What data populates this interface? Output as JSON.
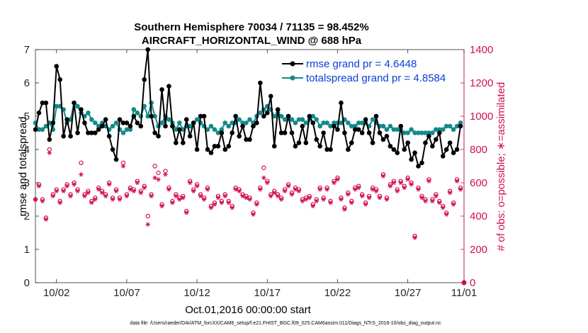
{
  "chart_data": {
    "type": "line",
    "title_line1": "Southern Hemisphere 70034 / 71135 = 98.452%",
    "title_line2": "AIRCRAFT_HORIZONTAL_WIND @ 688 hPa",
    "xlabel": "Oct.01,2016 00:00:00 start",
    "ylabel_left": "rmse and totalspread",
    "ylabel_right": "# of obs: o=possible; ∗=assimilated",
    "xlim": [
      0.5,
      31.0
    ],
    "ylim_left": [
      0,
      7
    ],
    "ylim_right": [
      0,
      1400
    ],
    "x_ticks": [
      {
        "x": 2,
        "label": "10/02"
      },
      {
        "x": 7,
        "label": "10/07"
      },
      {
        "x": 12,
        "label": "10/12"
      },
      {
        "x": 17,
        "label": "10/17"
      },
      {
        "x": 22,
        "label": "10/22"
      },
      {
        "x": 27,
        "label": "10/27"
      },
      {
        "x": 31,
        "label": "11/01"
      }
    ],
    "y_ticks_left": [
      "0",
      "1",
      "2",
      "3",
      "4",
      "5",
      "6",
      "7"
    ],
    "y_ticks_right": [
      "0",
      "200",
      "400",
      "600",
      "800",
      "1000",
      "1200",
      "1400"
    ],
    "legend": {
      "position": "top-right",
      "rmse": "rmse grand pr = 4.6448",
      "spread": "totalspread grand pr = 4.8584"
    },
    "colors": {
      "rmse": "#000000",
      "spread": "#138a8a",
      "obs": "#d0104f",
      "legend_text": "#0a3fd6"
    },
    "x": [
      0.5,
      0.75,
      1.0,
      1.25,
      1.5,
      1.75,
      2.0,
      2.25,
      2.5,
      2.75,
      3.0,
      3.25,
      3.5,
      3.75,
      4.0,
      4.25,
      4.5,
      4.75,
      5.0,
      5.25,
      5.5,
      5.75,
      6.0,
      6.25,
      6.5,
      6.75,
      7.0,
      7.25,
      7.5,
      7.75,
      8.0,
      8.25,
      8.5,
      8.75,
      9.0,
      9.25,
      9.5,
      9.75,
      10.0,
      10.25,
      10.5,
      10.75,
      11.0,
      11.25,
      11.5,
      11.75,
      12.0,
      12.25,
      12.5,
      12.75,
      13.0,
      13.25,
      13.5,
      13.75,
      14.0,
      14.25,
      14.5,
      14.75,
      15.0,
      15.25,
      15.5,
      15.75,
      16.0,
      16.25,
      16.5,
      16.75,
      17.0,
      17.25,
      17.5,
      17.75,
      18.0,
      18.25,
      18.5,
      18.75,
      19.0,
      19.25,
      19.5,
      19.75,
      20.0,
      20.25,
      20.5,
      20.75,
      21.0,
      21.25,
      21.5,
      21.75,
      22.0,
      22.25,
      22.5,
      22.75,
      23.0,
      23.25,
      23.5,
      23.75,
      24.0,
      24.25,
      24.5,
      24.75,
      25.0,
      25.25,
      25.5,
      25.75,
      26.0,
      26.25,
      26.5,
      26.75,
      27.0,
      27.25,
      27.5,
      27.75,
      28.0,
      28.25,
      28.5,
      28.75,
      29.0,
      29.25,
      29.5,
      29.75,
      30.0,
      30.25,
      30.5,
      30.75
    ],
    "rmse": [
      4.6,
      5.1,
      5.4,
      5.4,
      4.3,
      4.8,
      6.5,
      6.1,
      4.4,
      4.9,
      4.4,
      5.4,
      4.5,
      5.2,
      4.8,
      4.5,
      4.5,
      4.5,
      4.6,
      4.7,
      4.9,
      4.4,
      4.0,
      3.7,
      4.9,
      4.8,
      4.8,
      4.7,
      5.0,
      4.8,
      4.7,
      6.1,
      7.0,
      5.0,
      4.5,
      4.4,
      5.8,
      4.7,
      5.9,
      4.7,
      4.2,
      4.6,
      4.2,
      4.9,
      4.4,
      4.8,
      4.0,
      5.0,
      5.0,
      4.0,
      3.9,
      4.1,
      4.1,
      4.5,
      4.0,
      4.1,
      4.5,
      5.0,
      4.4,
      4.7,
      4.3,
      4.3,
      4.7,
      4.8,
      6.0,
      5.0,
      5.1,
      5.6,
      4.1,
      5.2,
      4.5,
      4.5,
      5.0,
      4.5,
      4.1,
      4.2,
      4.7,
      4.2,
      5.0,
      4.8,
      4.3,
      4.1,
      4.5,
      4.0,
      4.0,
      4.7,
      4.6,
      5.4,
      4.5,
      4.0,
      4.2,
      4.6,
      4.6,
      4.5,
      4.9,
      4.5,
      4.2,
      5.0,
      4.5,
      4.3,
      4.4,
      4.1,
      4.0,
      3.9,
      4.7,
      4.0,
      4.2,
      3.7,
      3.9,
      3.5,
      3.6,
      4.2,
      4.4,
      4.1,
      4.3,
      4.5,
      3.8,
      4.0,
      4.2,
      3.9,
      4.0,
      4.7
    ],
    "totalspread": [
      4.8,
      4.6,
      4.6,
      4.7,
      4.8,
      4.6,
      5.3,
      5.3,
      5.2,
      4.8,
      4.9,
      5.4,
      5.3,
      5.1,
      5.0,
      5.1,
      4.9,
      4.8,
      4.7,
      4.8,
      4.7,
      4.6,
      4.7,
      4.8,
      4.6,
      4.5,
      4.6,
      4.6,
      5.2,
      5.1,
      5.0,
      5.3,
      5.0,
      5.4,
      5.0,
      4.7,
      4.8,
      5.0,
      4.9,
      4.8,
      4.6,
      4.8,
      4.6,
      4.7,
      4.7,
      4.8,
      4.9,
      4.8,
      4.7,
      4.6,
      4.7,
      4.6,
      4.5,
      4.6,
      4.8,
      4.7,
      4.8,
      4.8,
      4.9,
      4.8,
      4.8,
      4.9,
      4.8,
      5.0,
      5.1,
      5.2,
      5.3,
      5.2,
      5.0,
      5.1,
      5.0,
      4.9,
      5.0,
      4.9,
      4.8,
      4.9,
      4.9,
      4.8,
      4.9,
      5.0,
      4.9,
      4.7,
      4.8,
      4.8,
      4.7,
      4.8,
      4.8,
      4.8,
      4.9,
      4.8,
      4.7,
      4.7,
      4.8,
      4.8,
      4.8,
      4.7,
      4.9,
      4.8,
      4.7,
      4.7,
      4.6,
      4.7,
      4.6,
      4.6,
      4.6,
      4.5,
      4.5,
      4.6,
      4.5,
      4.5,
      4.5,
      4.5,
      4.5,
      4.5,
      4.6,
      4.6,
      4.6,
      4.7,
      4.7,
      4.6,
      4.7,
      4.8
    ],
    "obs_assimilated": [
      500,
      580,
      490,
      380,
      780,
      520,
      550,
      480,
      550,
      580,
      520,
      590,
      550,
      650,
      520,
      540,
      480,
      500,
      560,
      540,
      520,
      590,
      500,
      550,
      500,
      700,
      520,
      560,
      550,
      600,
      540,
      570,
      350,
      520,
      630,
      620,
      460,
      650,
      560,
      480,
      520,
      500,
      510,
      420,
      600,
      550,
      580,
      520,
      500,
      560,
      450,
      470,
      510,
      480,
      520,
      480,
      450,
      560,
      550,
      520,
      510,
      500,
      410,
      470,
      560,
      630,
      600,
      520,
      540,
      520,
      500,
      550,
      580,
      530,
      560,
      550,
      490,
      500,
      510,
      460,
      490,
      560,
      500,
      560,
      480,
      600,
      620,
      500,
      440,
      530,
      480,
      560,
      570,
      520,
      470,
      510,
      560,
      550,
      510,
      640,
      500,
      580,
      600,
      550,
      600,
      570,
      620,
      590,
      270,
      560,
      510,
      490,
      610,
      490,
      520,
      480,
      450,
      410,
      540,
      470,
      610,
      560,
      520,
      580
    ],
    "obs_possible": [
      500,
      590,
      500,
      390,
      800,
      530,
      560,
      490,
      560,
      590,
      530,
      600,
      560,
      720,
      530,
      550,
      490,
      510,
      570,
      550,
      530,
      600,
      510,
      560,
      510,
      720,
      530,
      570,
      560,
      610,
      550,
      580,
      400,
      530,
      700,
      660,
      470,
      670,
      570,
      490,
      530,
      510,
      520,
      430,
      610,
      560,
      590,
      530,
      510,
      570,
      460,
      480,
      520,
      490,
      530,
      490,
      460,
      570,
      560,
      530,
      520,
      510,
      420,
      480,
      570,
      690,
      610,
      530,
      550,
      530,
      510,
      560,
      590,
      540,
      570,
      560,
      500,
      510,
      520,
      470,
      500,
      570,
      510,
      570,
      490,
      610,
      630,
      510,
      450,
      540,
      490,
      570,
      580,
      530,
      480,
      520,
      570,
      560,
      520,
      650,
      510,
      590,
      610,
      560,
      610,
      580,
      630,
      600,
      280,
      570,
      520,
      500,
      620,
      500,
      530,
      490,
      460,
      420,
      550,
      480,
      620,
      570,
      530,
      590
    ]
  },
  "footer": "data file: /Users/raeder/DAI/ATM_forcXX/CAM6_setup/f.e21.FHIST_BGC.f09_025.CAM6assim.011/Diags_NTrS_2016-10/obs_diag_output.nc"
}
